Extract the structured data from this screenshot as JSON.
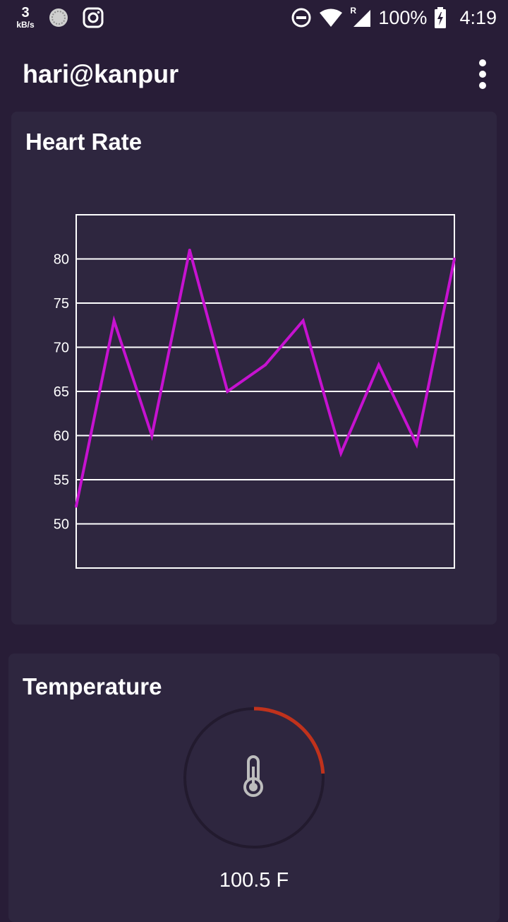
{
  "status_bar": {
    "net_speed_value": "3",
    "net_speed_unit": "kB/s",
    "battery": "100%",
    "time": "4:19",
    "roaming": "R",
    "icons": [
      "loading-icon",
      "instagram-icon",
      "data-saver-icon",
      "wifi-icon",
      "signal-icon",
      "battery-charging-icon"
    ]
  },
  "app_bar": {
    "title": "hari@kanpur",
    "menu_icon": "more-vert-icon"
  },
  "heart_rate": {
    "title": "Heart Rate",
    "line_color": "#c612d0"
  },
  "chart_data": {
    "type": "line",
    "title": "Heart Rate",
    "xlabel": "",
    "ylabel": "",
    "y_ticks": [
      50,
      55,
      60,
      65,
      70,
      75,
      80
    ],
    "ylim": [
      45,
      85
    ],
    "grid": true,
    "series": [
      {
        "values": [
          52,
          73,
          60,
          81,
          65,
          68,
          73,
          58,
          68,
          59,
          80
        ]
      }
    ]
  },
  "temperature": {
    "title": "Temperature",
    "value_text": "100.5 F",
    "gauge_fraction": 0.24,
    "gauge_color": "#c0321c",
    "icon": "thermometer-icon"
  }
}
